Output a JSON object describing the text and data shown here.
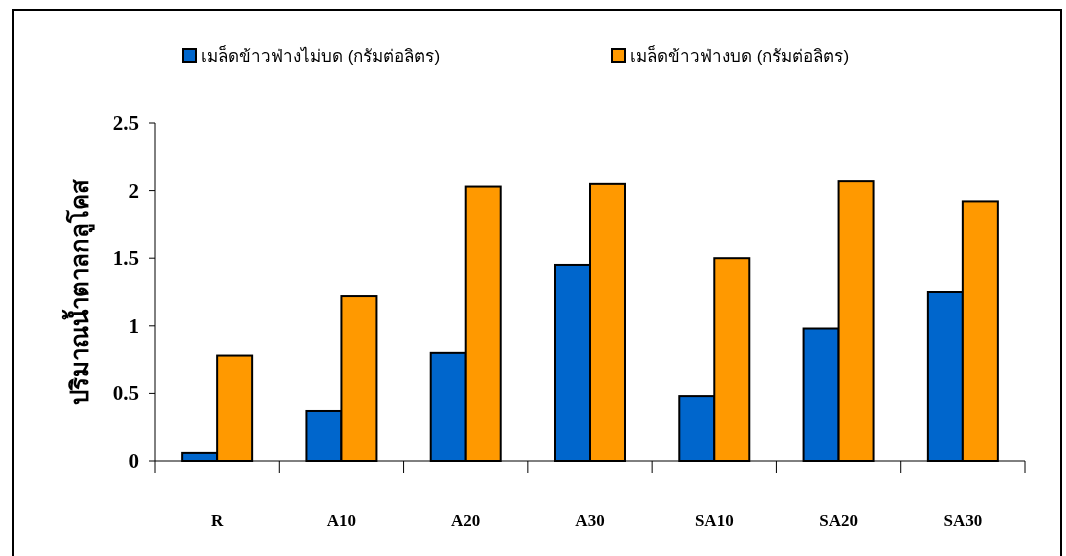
{
  "chart_data": {
    "type": "bar",
    "ylabel": "ปริมาณน้ำตาลกลูโคส",
    "categories": [
      "R",
      "A10",
      "A20",
      "A30",
      "SA10",
      "SA20",
      "SA30"
    ],
    "series": [
      {
        "name": "เมล็ดข้าวฟ่างไม่บด (กรัมต่อลิตร)",
        "color": "#0066cc",
        "values": [
          0.06,
          0.37,
          0.8,
          1.45,
          0.48,
          0.98,
          1.25
        ]
      },
      {
        "name": "เมล็ดข้าวฟ่างบด (กรัมต่อลิตร)",
        "color": "#ff9900",
        "values": [
          0.78,
          1.22,
          2.03,
          2.05,
          1.5,
          2.07,
          1.92
        ]
      }
    ],
    "ylim": [
      0,
      2.5
    ],
    "yticks": [
      0,
      0.5,
      1,
      1.5,
      2,
      2.5
    ],
    "legend": "top"
  }
}
